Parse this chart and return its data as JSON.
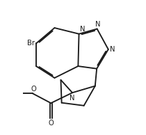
{
  "bg_color": "#ffffff",
  "line_color": "#1a1a1a",
  "lw": 1.35,
  "fs": 7.2,
  "figsize": [
    2.1,
    1.94
  ],
  "dpi": 100,
  "xlim": [
    0.0,
    10.5
  ],
  "ylim": [
    -1.0,
    9.5
  ]
}
